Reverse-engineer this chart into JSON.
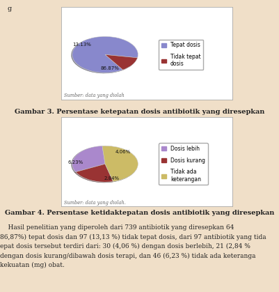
{
  "chart1": {
    "labels": [
      "Tepat dosis",
      "Tidak tepat\ndosis"
    ],
    "values": [
      86.87,
      13.13
    ],
    "colors": [
      "#8888cc",
      "#993333"
    ],
    "autopct_labels": [
      "86.87%",
      "13.13%"
    ],
    "source_text": "Sumber: data yang diolah",
    "startangle": -10,
    "shadow": true
  },
  "chart2": {
    "labels": [
      "Dosis lebih",
      "Dosis kurang",
      "Tidak ada\nketerangan"
    ],
    "values": [
      4.06,
      2.84,
      6.23
    ],
    "colors": [
      "#aa88cc",
      "#993333",
      "#ccbb66"
    ],
    "autopct_labels": [
      "4.06%",
      "2.84%",
      "6.23%"
    ],
    "source_text": "Sumber: data yang diolah.",
    "startangle": 95,
    "shadow": true
  },
  "caption1": "Gambar 3. Persentase ketepatan dosis antibiotik yang diresepkan",
  "caption2": "Gambar 4. Persentase ketidaktepatan dosis antibiotik yang diresepkan",
  "body_lines": [
    "    Hasil penelitian yang diperoleh dari 739 antibiotik yang diresepkan 64",
    "86,87%) tepat dosis dan 97 (13,13 %) tidak tepat dosis, dari 97 antibiotik yang tida",
    "epat dosis tersebut terdiri dari: 30 (4,06 %) dengan dosis berlebih, 21 (2,84 %",
    "dengan dosis kurang/dibawah dosis terapi, dan 46 (6,23 %) tidak ada keteranga",
    "kekuatan (mg) obat."
  ],
  "top_letter": "g",
  "fig_width": 4.02,
  "fig_height": 4.19,
  "page_bg": "#f0dfc8",
  "box_bg": "#ffffff",
  "box_border": "#aaaaaa",
  "text_color": "#222222",
  "source_color": "#666666",
  "caption_fontsize": 7.0,
  "body_fontsize": 6.5,
  "label_fontsize": 5.5,
  "legend_fontsize": 5.5
}
